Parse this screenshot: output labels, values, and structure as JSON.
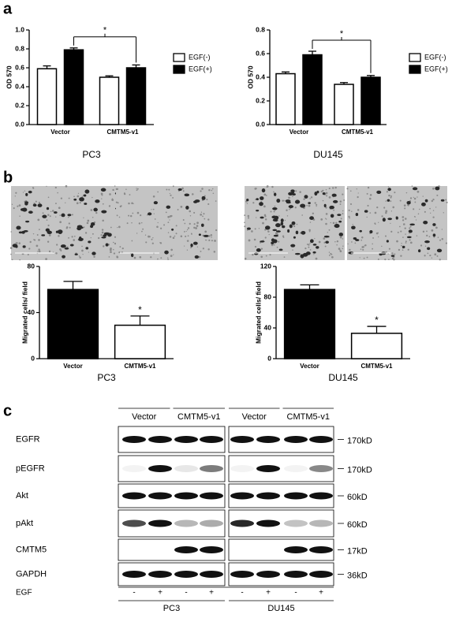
{
  "panel_labels": [
    "a",
    "b",
    "c"
  ],
  "chart_data": [
    {
      "type": "bar",
      "title": "PC3",
      "ylabel": "OD 570",
      "categories": [
        "Vector",
        "CMTM5-v1"
      ],
      "series": [
        {
          "name": "EGF(-)",
          "color": "#ffffff",
          "values": [
            0.59,
            0.5
          ],
          "errors": [
            0.03,
            0.015
          ]
        },
        {
          "name": "EGF(+)",
          "color": "#000000",
          "values": [
            0.79,
            0.6
          ],
          "errors": [
            0.02,
            0.03
          ]
        }
      ],
      "ylim": [
        0,
        1
      ],
      "yticks": [
        {
          "value": 0,
          "label": "0.0"
        },
        0.2,
        0.4,
        0.6,
        0.8,
        {
          "value": 1,
          "label": "1.0"
        }
      ],
      "legend": "right",
      "annotations": [
        {
          "text": "*"
        }
      ]
    },
    {
      "type": "bar",
      "title": "DU145",
      "ylabel": "OD 570",
      "categories": [
        "Vector",
        "CMTM5-v1"
      ],
      "series": [
        {
          "name": "EGF(-)",
          "color": "#ffffff",
          "values": [
            0.43,
            0.34
          ],
          "errors": [
            0.015,
            0.015
          ]
        },
        {
          "name": "EGF(+)",
          "color": "#000000",
          "values": [
            0.59,
            0.4
          ],
          "errors": [
            0.03,
            0.015
          ]
        }
      ],
      "ylim": [
        0,
        0.8
      ],
      "yticks": [
        {
          "value": 0,
          "label": "0.0"
        },
        0.2,
        0.4,
        0.6,
        0.8
      ],
      "legend": "right",
      "annotations": [
        {
          "text": "*"
        }
      ]
    },
    {
      "type": "bar",
      "title": "PC3",
      "ylabel": "Migrated cells/ field",
      "categories": [
        "Vector",
        "CMTM5-v1"
      ],
      "values": [
        60,
        29
      ],
      "errors": [
        7,
        8
      ],
      "colors": [
        "#000000",
        "#ffffff"
      ],
      "ylim": [
        0,
        80
      ],
      "yticks": [
        0,
        40,
        80
      ],
      "annotations": [
        {
          "text": "*"
        }
      ]
    },
    {
      "type": "bar",
      "title": "DU145",
      "ylabel": "Migrated cells/ field",
      "categories": [
        "Vector",
        "CMTM5-v1"
      ],
      "values": [
        90,
        33
      ],
      "errors": [
        6,
        9
      ],
      "colors": [
        "#000000",
        "#ffffff"
      ],
      "ylim": [
        0,
        120
      ],
      "yticks": [
        0,
        40,
        80,
        120
      ],
      "annotations": [
        {
          "text": "*"
        }
      ]
    }
  ],
  "western_blot": {
    "groups": [
      "Vector",
      "CMTM5-v1",
      "Vector",
      "CMTM5-v1"
    ],
    "rows": [
      {
        "label": "EGFR",
        "size": "170kD"
      },
      {
        "label": "pEGFR",
        "size": "170kD"
      },
      {
        "label": "Akt",
        "size": "60kD"
      },
      {
        "label": "pAkt",
        "size": "60kD"
      },
      {
        "label": "CMTM5",
        "size": "17kD"
      },
      {
        "label": "GAPDH",
        "size": "36kD"
      }
    ],
    "egf_label": "EGF",
    "egf": [
      "-",
      "+",
      "-",
      "+",
      "-",
      "+",
      "-",
      "+"
    ],
    "cell_lines": [
      "PC3",
      "DU145"
    ]
  }
}
